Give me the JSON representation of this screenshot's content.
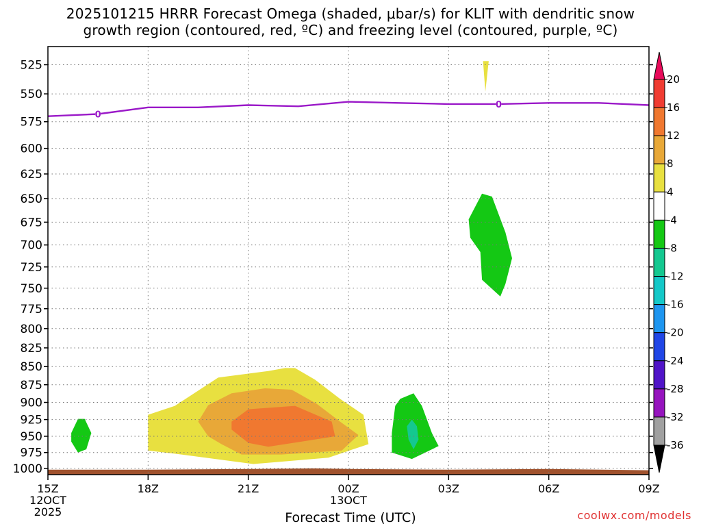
{
  "title": {
    "line1": "2025101215 HRRR Forecast Omega (shaded, μbar/s) for KLIT with dendritic snow",
    "line2": "growth region (contoured, red, ºC) and freezing level (contoured, purple, ºC)"
  },
  "credit": "coolwx.com/models",
  "colors": {
    "freezing_line": "#9a18c8",
    "terrain": "#a0522d",
    "grid": "#777777"
  },
  "chart_data": {
    "type": "heatmap",
    "xlabel": "Forecast Time (UTC)",
    "ylabel": "",
    "y_log_pressure": true,
    "ylim": [
      510,
      1010
    ],
    "xlim": [
      0,
      18
    ],
    "grid": true,
    "x_ticks": [
      {
        "hour": 0,
        "label": "15Z",
        "sub1": "12OCT",
        "sub2": "2025"
      },
      {
        "hour": 3,
        "label": "18Z",
        "sub1": "",
        "sub2": ""
      },
      {
        "hour": 6,
        "label": "21Z",
        "sub1": "",
        "sub2": ""
      },
      {
        "hour": 9,
        "label": "00Z",
        "sub1": "13OCT",
        "sub2": ""
      },
      {
        "hour": 12,
        "label": "03Z",
        "sub1": "",
        "sub2": ""
      },
      {
        "hour": 15,
        "label": "06Z",
        "sub1": "",
        "sub2": ""
      },
      {
        "hour": 18,
        "label": "09Z",
        "sub1": "",
        "sub2": ""
      }
    ],
    "y_ticks": [
      525,
      550,
      575,
      600,
      625,
      650,
      675,
      700,
      725,
      750,
      775,
      800,
      825,
      850,
      875,
      900,
      925,
      950,
      975,
      1000
    ],
    "colorbar": {
      "labels": [
        20,
        16,
        12,
        8,
        4,
        -4,
        -8,
        -12,
        -16,
        -20,
        -24,
        -28,
        -32,
        -36
      ],
      "bins": [
        {
          "color": "#e80a5a"
        },
        {
          "color": "#f03c32"
        },
        {
          "color": "#f07830"
        },
        {
          "color": "#e8a838"
        },
        {
          "color": "#e8e040"
        },
        {
          "color": "#ffffff"
        },
        {
          "color": "#14c814"
        },
        {
          "color": "#14c890"
        },
        {
          "color": "#14c8c8"
        },
        {
          "color": "#1e96f0"
        },
        {
          "color": "#2046e6"
        },
        {
          "color": "#5014c8"
        },
        {
          "color": "#9614be"
        },
        {
          "color": "#a0a0a0"
        },
        {
          "color": "#000000"
        }
      ]
    },
    "freezing_level": {
      "label": "0",
      "points": [
        [
          0,
          570
        ],
        [
          1.5,
          568
        ],
        [
          3,
          562
        ],
        [
          4.5,
          562
        ],
        [
          6,
          560
        ],
        [
          7.5,
          561
        ],
        [
          9,
          557
        ],
        [
          10.5,
          558
        ],
        [
          12,
          559
        ],
        [
          13.5,
          559
        ],
        [
          15,
          558
        ],
        [
          16.5,
          558
        ],
        [
          18,
          560
        ]
      ],
      "label_hours": [
        1.5,
        13.5
      ]
    },
    "omega_regions": [
      {
        "value_bin": 4,
        "points": [
          [
            7.1,
            852
          ],
          [
            7.4,
            852
          ],
          [
            8.0,
            868
          ],
          [
            8.75,
            895
          ],
          [
            9.45,
            918
          ],
          [
            9.6,
            962
          ],
          [
            8.4,
            983
          ],
          [
            6.15,
            993
          ],
          [
            4.0,
            978
          ],
          [
            3.0,
            972
          ],
          [
            3.0,
            918
          ],
          [
            3.8,
            905
          ],
          [
            5.1,
            865
          ],
          [
            6.6,
            856
          ]
        ]
      },
      {
        "value_bin": 3,
        "points": [
          [
            5.5,
            887
          ],
          [
            6.5,
            880
          ],
          [
            7.3,
            882
          ],
          [
            8.05,
            902
          ],
          [
            8.75,
            928
          ],
          [
            9.3,
            948
          ],
          [
            8.8,
            972
          ],
          [
            7.0,
            978
          ],
          [
            5.8,
            978
          ],
          [
            5.2,
            962
          ],
          [
            4.8,
            950
          ],
          [
            4.5,
            928
          ],
          [
            4.8,
            904
          ]
        ]
      },
      {
        "value_bin": 2,
        "points": [
          [
            6.0,
            910
          ],
          [
            7.4,
            905
          ],
          [
            8.5,
            928
          ],
          [
            8.6,
            950
          ],
          [
            7.6,
            958
          ],
          [
            6.6,
            966
          ],
          [
            6.0,
            960
          ],
          [
            5.5,
            940
          ],
          [
            5.5,
            928
          ]
        ]
      },
      {
        "value_bin": 4,
        "points": [
          [
            13.03,
            522
          ],
          [
            13.2,
            522
          ],
          [
            13.1,
            548
          ]
        ]
      },
      {
        "value_bin": 6,
        "points": [
          [
            0.9,
            924
          ],
          [
            1.1,
            924
          ],
          [
            1.3,
            945
          ],
          [
            1.15,
            970
          ],
          [
            0.9,
            975
          ],
          [
            0.7,
            958
          ],
          [
            0.7,
            945
          ]
        ]
      },
      {
        "value_bin": 6,
        "points": [
          [
            10.55,
            895
          ],
          [
            10.95,
            887
          ],
          [
            11.2,
            905
          ],
          [
            11.5,
            945
          ],
          [
            11.7,
            965
          ],
          [
            10.9,
            985
          ],
          [
            10.3,
            975
          ],
          [
            10.3,
            945
          ],
          [
            10.4,
            905
          ]
        ]
      },
      {
        "value_bin": 7,
        "points": [
          [
            10.9,
            925
          ],
          [
            11.05,
            935
          ],
          [
            11.1,
            955
          ],
          [
            10.95,
            970
          ],
          [
            10.8,
            955
          ],
          [
            10.75,
            935
          ]
        ]
      },
      {
        "value_bin": 6,
        "points": [
          [
            13.0,
            645
          ],
          [
            13.3,
            648
          ],
          [
            13.7,
            686
          ],
          [
            13.9,
            715
          ],
          [
            13.7,
            745
          ],
          [
            13.55,
            760
          ],
          [
            13.0,
            740
          ],
          [
            12.95,
            708
          ],
          [
            12.65,
            692
          ],
          [
            12.6,
            672
          ]
        ]
      }
    ],
    "terrain": {
      "points": [
        [
          0,
          1002
        ],
        [
          3,
          1002
        ],
        [
          6,
          1001
        ],
        [
          8,
          1000
        ],
        [
          9,
          1001
        ],
        [
          12,
          1002
        ],
        [
          15,
          1001
        ],
        [
          18,
          1003
        ]
      ]
    }
  }
}
